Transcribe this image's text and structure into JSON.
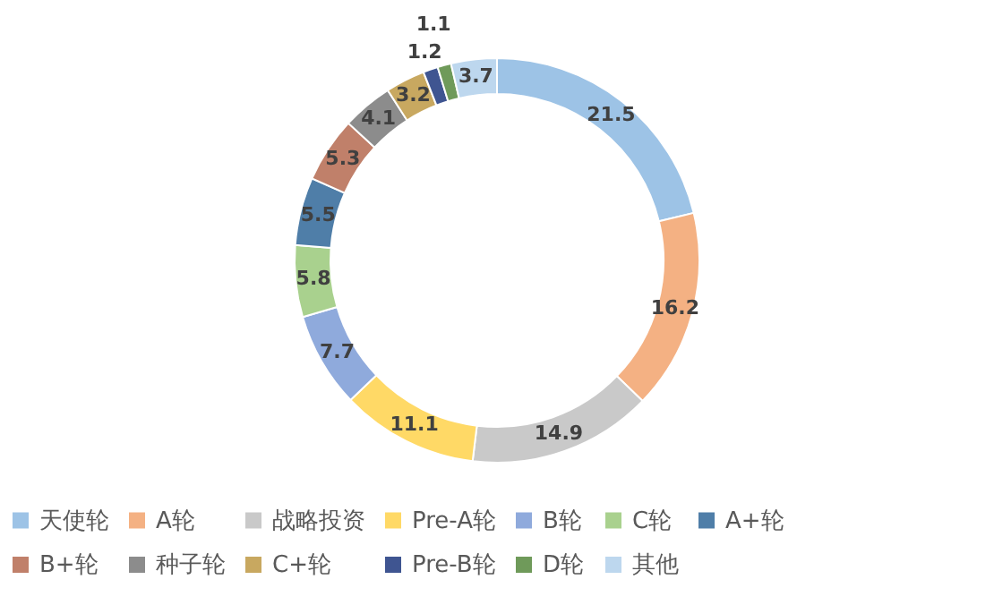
{
  "chart_data": {
    "type": "donut",
    "categories": [
      "天使轮",
      "A轮",
      "战略投资",
      "Pre-A轮",
      "B轮",
      "C轮",
      "A+轮",
      "B+轮",
      "种子轮",
      "C+轮",
      "Pre-B轮",
      "D轮",
      "其他"
    ],
    "values": [
      21.5,
      16.2,
      14.9,
      11.1,
      7.7,
      5.8,
      5.5,
      5.3,
      4.1,
      3.2,
      1.2,
      1.1,
      3.7
    ],
    "colors": [
      "#9dc3e6",
      "#f4b183",
      "#c9c9c9",
      "#ffd966",
      "#8faadc",
      "#a9d18e",
      "#4f7ea8",
      "#c0806a",
      "#8c8c8c",
      "#c8a860",
      "#3f5591",
      "#6f9a5a",
      "#bdd7ee"
    ],
    "data_labels": true,
    "legend": "bottom"
  }
}
